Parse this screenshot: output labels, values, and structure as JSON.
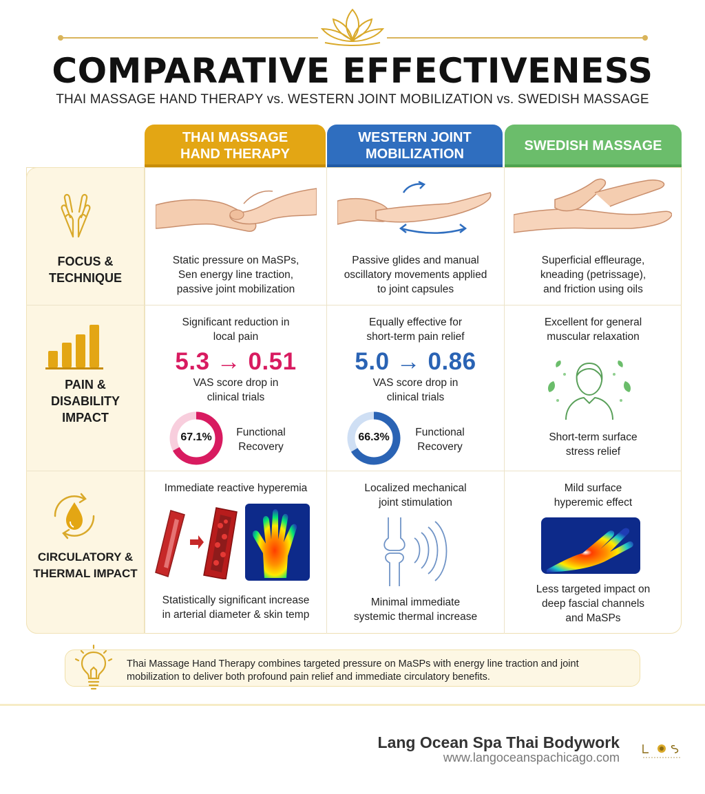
{
  "header": {
    "title": "COMPARATIVE EFFECTIVENESS",
    "subtitle": "THAI MASSAGE HAND THERAPY vs. WESTERN JOINT MOBILIZATION vs. SWEDISH MASSAGE"
  },
  "columns": [
    {
      "label_line1": "THAI MASSAGE",
      "label_line2": "HAND THERAPY",
      "color": "#e3a614"
    },
    {
      "label_line1": "WESTERN JOINT",
      "label_line2": "MOBILIZATION",
      "color": "#2f6ebf"
    },
    {
      "label_line1": "SWEDISH MASSAGE",
      "label_line2": "",
      "color": "#6bbd6b"
    }
  ],
  "rows": {
    "focus": {
      "label_line1": "FOCUS &",
      "label_line2": "TECHNIQUE",
      "thai": [
        "Static pressure on MaSPs,",
        "Sen energy line traction,",
        "passive joint mobilization"
      ],
      "western": [
        "Passive glides and manual",
        "oscillatory movements applied",
        "to joint capsules"
      ],
      "swedish": [
        "Superficial effleurage,",
        "kneading (petrissage),",
        "and friction using oils"
      ]
    },
    "pain": {
      "label_line1": "PAIN &",
      "label_line2": "DISABILITY",
      "label_line3": "IMPACT",
      "thai": {
        "intro": [
          "Significant reduction in",
          "local pain"
        ],
        "score": "5.3 → 0.51",
        "score_color": "#d81b60",
        "note": [
          "VAS score drop in",
          "clinical trials"
        ],
        "donut_label": "67.1%",
        "donut_value": 67.1,
        "recovery": [
          "Functional",
          "Recovery"
        ]
      },
      "western": {
        "intro": [
          "Equally effective for",
          "short-term pain relief"
        ],
        "score": "5.0 → 0.86",
        "score_color": "#2a63b4",
        "note": [
          "VAS score drop in",
          "clinical trials"
        ],
        "donut_label": "66.3%",
        "donut_value": 66.3,
        "recovery": [
          "Functional",
          "Recovery"
        ]
      },
      "swedish": {
        "intro": [
          "Excellent for general",
          "muscular relaxation"
        ],
        "outro": [
          "Short-term surface",
          "stress relief"
        ]
      }
    },
    "circulatory": {
      "label_line1": "CIRCULATORY &",
      "label_line2": "THERMAL IMPACT",
      "thai": {
        "intro": [
          "Immediate reactive hyperemia"
        ],
        "outro": [
          "Statistically significant increase",
          "in arterial diameter & skin temp"
        ]
      },
      "western": {
        "intro": [
          "Localized mechanical",
          "joint stimulation"
        ],
        "outro": [
          "Minimal immediate",
          "systemic thermal increase"
        ]
      },
      "swedish": {
        "intro": [
          "Mild surface",
          "hyperemic effect"
        ],
        "outro": [
          "Less targeted impact on",
          "deep fascial channels",
          "and MaSPs"
        ]
      }
    }
  },
  "summary": {
    "line1": "Thai Massage Hand Therapy combines targeted pressure on MaSPs with energy line traction and joint",
    "line2": "mobilization to deliver both profound pain relief and immediate circulatory benefits."
  },
  "footer": {
    "name": "Lang Ocean Spa Thai Bodywork",
    "url": "www.langoceanspachicago.com"
  },
  "icons": {
    "lotus": "lotus-icon",
    "hands": "praying-hands-icon",
    "bars": "bar-chart-icon",
    "drop": "drop-cycle-icon",
    "bulb": "lightbulb-icon"
  },
  "accent": "#d9a92a"
}
